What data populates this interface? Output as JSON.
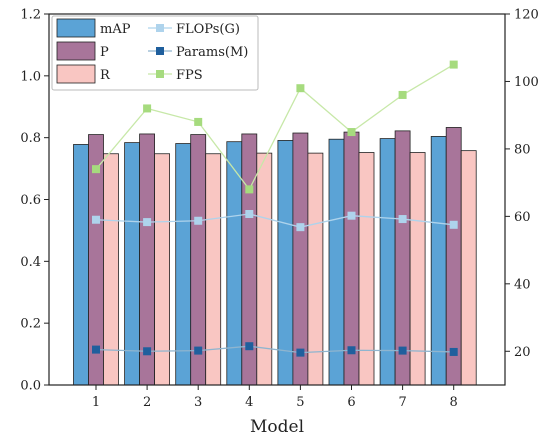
{
  "chart_data": {
    "type": "bar",
    "title": "",
    "xlabel": "Model",
    "ylabel": "",
    "y2label": "",
    "categories": [
      "1",
      "2",
      "3",
      "4",
      "5",
      "6",
      "7",
      "8"
    ],
    "ylim": [
      0.0,
      1.2
    ],
    "y2lim": [
      10,
      120
    ],
    "yticks": [
      "0.0",
      "0.2",
      "0.4",
      "0.6",
      "0.8",
      "1.0",
      "1.2"
    ],
    "y2ticks": [
      "20",
      "40",
      "60",
      "80",
      "100",
      "120"
    ],
    "bar_series": [
      {
        "name": "mAP",
        "color": "#5ba3d6",
        "values": [
          0.778,
          0.784,
          0.781,
          0.787,
          0.791,
          0.795,
          0.797,
          0.804
        ]
      },
      {
        "name": "P",
        "color": "#a8759a",
        "values": [
          0.81,
          0.812,
          0.81,
          0.812,
          0.815,
          0.818,
          0.822,
          0.833
        ]
      },
      {
        "name": "R",
        "color": "#f9c6c2",
        "values": [
          0.748,
          0.748,
          0.748,
          0.75,
          0.75,
          0.752,
          0.752,
          0.758
        ]
      }
    ],
    "line_series": [
      {
        "name": "FLOPs(G)",
        "axis": "right",
        "line_color": "#aed3ec",
        "marker_color": "#aed3ec",
        "values": [
          59,
          58.3,
          58.7,
          60.7,
          56.8,
          60.2,
          59.2,
          57.5
        ]
      },
      {
        "name": "Params(M)",
        "axis": "right",
        "line_color": "#8fb5cf",
        "marker_color": "#1f5f9d",
        "values": [
          20.5,
          20,
          20.2,
          21.5,
          19.6,
          20.3,
          20.2,
          19.8
        ]
      },
      {
        "name": "FPS",
        "axis": "right",
        "line_color": "#c7e8a8",
        "marker_color": "#a6db7e",
        "values": [
          74,
          92,
          88,
          68,
          98,
          85,
          96,
          105
        ]
      }
    ],
    "legend": {
      "placement": "top-left",
      "col1": [
        "mAP",
        "P",
        "R"
      ],
      "col2": [
        "FLOPs(G)",
        "Params(M)",
        "FPS"
      ]
    },
    "grid": false
  }
}
